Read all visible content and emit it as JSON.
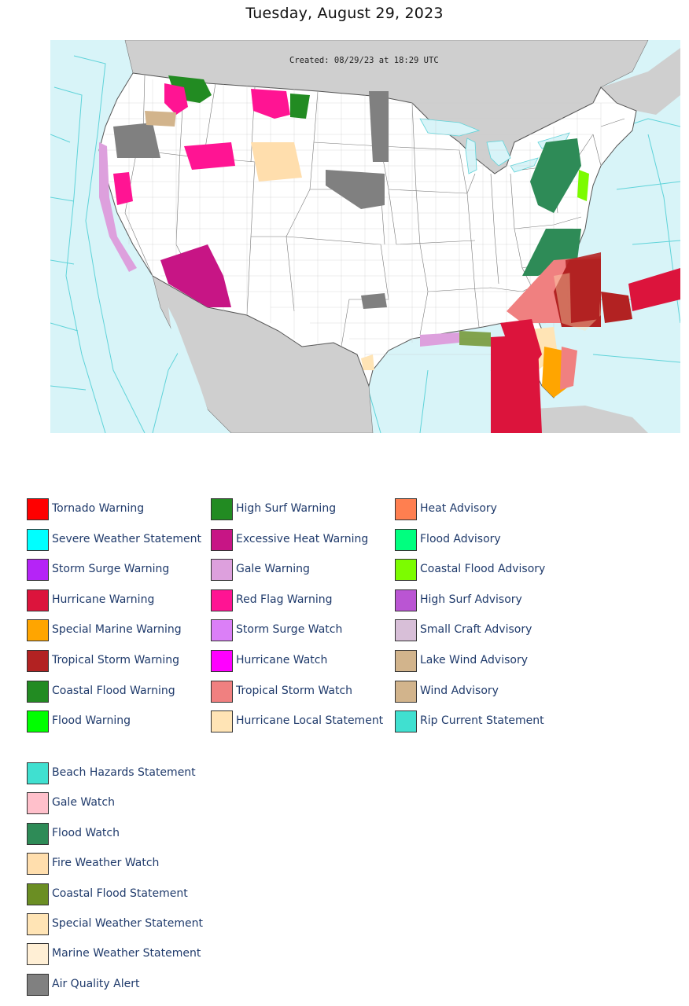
{
  "date_title": "Tuesday, August 29, 2023",
  "map": {
    "created_stamp": "Created: 08/29/23 at 18:29 UTC",
    "colors": {
      "ocean": "#d8f4f8",
      "land": "#ffffff",
      "foreign_land": "#cfcfcf",
      "zone_lines": "#5fd3d9",
      "borders": "#555555"
    }
  },
  "legend": {
    "column_1": [
      {
        "label": "Tornado Warning",
        "color": "#ff0000"
      },
      {
        "label": "Severe Weather Statement",
        "color": "#00ffff"
      },
      {
        "label": "Storm Surge Warning",
        "color": "#b524f7"
      },
      {
        "label": "Hurricane Warning",
        "color": "#dc143c"
      },
      {
        "label": "Special Marine Warning",
        "color": "#ffa500"
      },
      {
        "label": "Tropical Storm Warning",
        "color": "#b22222"
      },
      {
        "label": "Coastal Flood Warning",
        "color": "#228b22"
      },
      {
        "label": "Flood Warning",
        "color": "#00ff00"
      }
    ],
    "column_2": [
      {
        "label": "High Surf Warning",
        "color": "#228b22"
      },
      {
        "label": "Excessive Heat Warning",
        "color": "#c71585"
      },
      {
        "label": "Gale Warning",
        "color": "#dda0dd"
      },
      {
        "label": "Red Flag Warning",
        "color": "#ff1493"
      },
      {
        "label": "Storm Surge Watch",
        "color": "#db7ff7"
      },
      {
        "label": "Hurricane Watch",
        "color": "#ff00ff"
      },
      {
        "label": "Tropical Storm Watch",
        "color": "#f08080"
      },
      {
        "label": "Hurricane Local Statement",
        "color": "#ffe4b5"
      }
    ],
    "column_3": [
      {
        "label": "Heat Advisory",
        "color": "#ff7f50"
      },
      {
        "label": "Flood Advisory",
        "color": "#00ff7f"
      },
      {
        "label": "Coastal Flood Advisory",
        "color": "#7cfc00"
      },
      {
        "label": "High Surf Advisory",
        "color": "#ba55d3"
      },
      {
        "label": "Small Craft Advisory",
        "color": "#d8bfd8"
      },
      {
        "label": "Lake Wind Advisory",
        "color": "#d2b48c"
      },
      {
        "label": "Wind Advisory",
        "color": "#d2b48c"
      },
      {
        "label": "Rip Current Statement",
        "color": "#40e0d0"
      }
    ],
    "column_4": [
      {
        "label": "Beach Hazards Statement",
        "color": "#40e0d0"
      },
      {
        "label": "Gale Watch",
        "color": "#ffc0cb"
      },
      {
        "label": "Flood Watch",
        "color": "#2e8b57"
      },
      {
        "label": "Fire Weather Watch",
        "color": "#ffdead"
      },
      {
        "label": "Coastal Flood Statement",
        "color": "#6b8e23"
      },
      {
        "label": "Special Weather Statement",
        "color": "#ffe4b5"
      },
      {
        "label": "Marine Weather Statement",
        "color": "#ffefd5"
      },
      {
        "label": "Air Quality Alert",
        "color": "#808080"
      }
    ]
  }
}
